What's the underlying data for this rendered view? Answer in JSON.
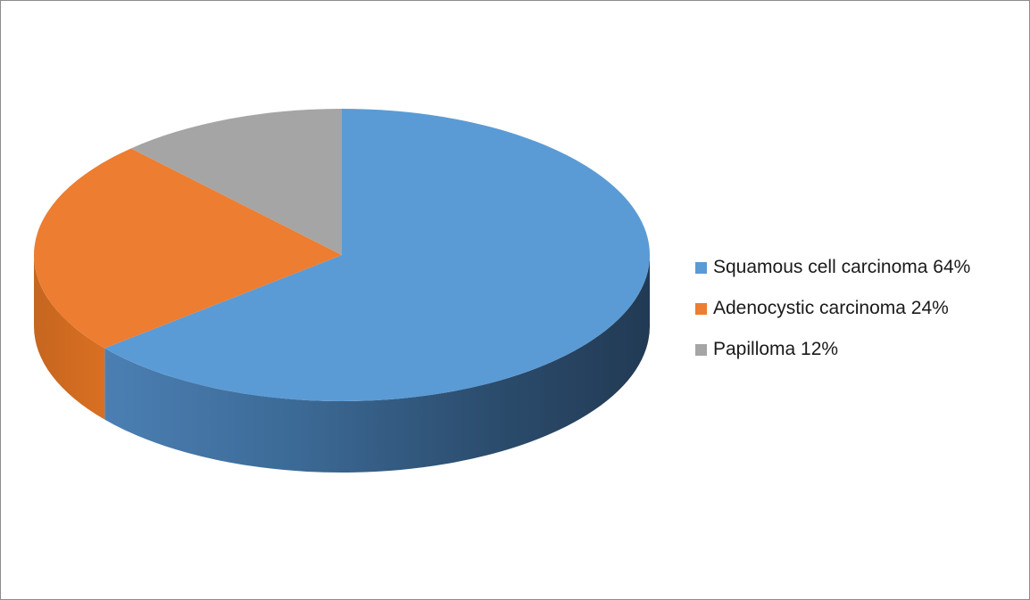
{
  "chart_data": {
    "type": "pie",
    "style": "3d",
    "slices": [
      {
        "label": "Squamous cell carcinoma 64%",
        "value": 64,
        "color": "#5B9BD5"
      },
      {
        "label": "Adenocystic carcinoma 24%",
        "value": 24,
        "color": "#ED7D31"
      },
      {
        "label": "Papilloma 12%",
        "value": 12,
        "color": "#A5A5A5"
      }
    ],
    "legend_position": "right"
  }
}
